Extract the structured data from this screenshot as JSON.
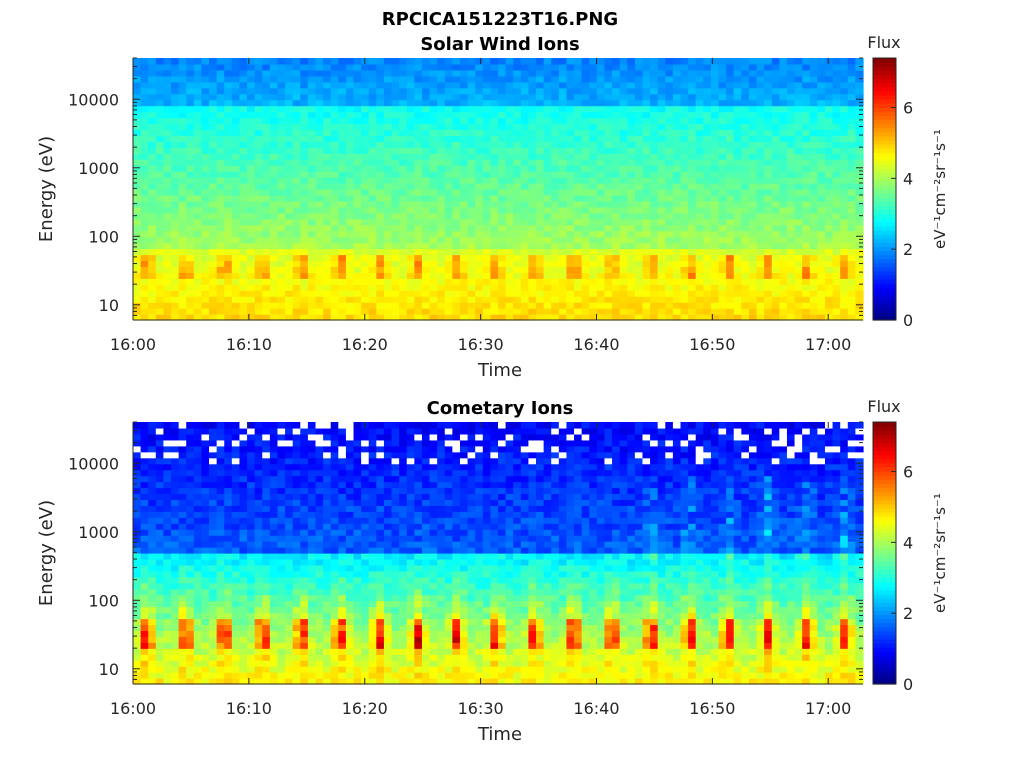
{
  "figure": {
    "filename_title": "RPCICA151223T16.PNG"
  },
  "chart_data": [
    {
      "type": "heatmap",
      "title": "Solar Wind Ions",
      "xlabel": "Time",
      "ylabel": "Energy (eV)",
      "x_ticks": [
        "16:00",
        "16:10",
        "16:20",
        "16:30",
        "16:40",
        "16:50",
        "17:00"
      ],
      "x_range_minutes": [
        0,
        63
      ],
      "y_scale": "log",
      "y_ticks": [
        10,
        100,
        1000,
        10000
      ],
      "y_tick_labels": [
        "10",
        "100",
        "1000",
        "10000"
      ],
      "y_range_eV": [
        6,
        40000
      ],
      "colorbar": {
        "title": "Flux",
        "label": "eV⁻¹cm⁻²sr⁻¹s⁻¹",
        "range": [
          0,
          7.4
        ],
        "ticks": [
          0,
          2,
          4,
          6
        ],
        "tick_labels": [
          "0",
          "2",
          "4",
          "6"
        ],
        "colormap": "jet"
      },
      "peak_energy_band_eV": [
        25,
        45
      ],
      "peak_flux_approx": 5.5,
      "background_flux_approx": 3.0
    },
    {
      "type": "heatmap",
      "title": "Cometary Ions",
      "xlabel": "Time",
      "ylabel": "Energy (eV)",
      "x_ticks": [
        "16:00",
        "16:10",
        "16:20",
        "16:30",
        "16:40",
        "16:50",
        "17:00"
      ],
      "x_range_minutes": [
        0,
        63
      ],
      "y_scale": "log",
      "y_ticks": [
        10,
        100,
        1000,
        10000
      ],
      "y_tick_labels": [
        "10",
        "100",
        "1000",
        "10000"
      ],
      "y_range_eV": [
        6,
        40000
      ],
      "colorbar": {
        "title": "Flux",
        "label": "eV⁻¹cm⁻²sr⁻¹s⁻¹",
        "range": [
          0,
          7.4
        ],
        "ticks": [
          0,
          2,
          4,
          6
        ],
        "tick_labels": [
          "0",
          "2",
          "4",
          "6"
        ],
        "colormap": "jet"
      },
      "peak_energy_band_eV": [
        25,
        50
      ],
      "peak_flux_approx": 6.5,
      "background_flux_approx": 1.0
    }
  ]
}
